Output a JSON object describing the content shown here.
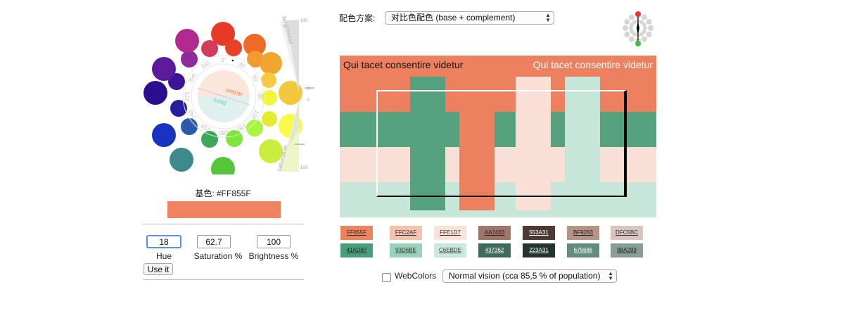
{
  "wheel": {
    "angle_labels": [
      "0°",
      "30",
      "60",
      "90",
      "120",
      "150",
      "180",
      "210",
      "240",
      "270",
      "300",
      "330"
    ],
    "warm_label": "warm",
    "cold_label": "cold",
    "brightness_label": "brightness",
    "saturation_label": "saturation",
    "brightness_ticks": [
      "100",
      "0"
    ],
    "saturation_ticks": [
      "0",
      "100"
    ],
    "circle_colors": [
      "#e63a26",
      "#d43a5a",
      "#e8412a",
      "#ee6a26",
      "#f09a30",
      "#f0a62e",
      "#f5c940",
      "#f4c83c",
      "#f3f53a",
      "#f8f948",
      "#e3ec30",
      "#c9ee3e",
      "#a8f53e",
      "#7de63a",
      "#55c63a",
      "#3ea85a",
      "#3c8a8c",
      "#2b5aa8",
      "#1a32c0",
      "#281e9c",
      "#2a0e90",
      "#3e1496",
      "#5a1a9a",
      "#8c2a9e",
      "#b02a90"
    ]
  },
  "base": {
    "label": "基色: #FF855F",
    "color": "#ef8260"
  },
  "inputs": {
    "hue": "18",
    "saturation": "62.7",
    "brightness": "100",
    "hue_label": "Hue",
    "saturation_label": "Saturation %",
    "brightness_label": "Brightness %",
    "use_button": "Use it"
  },
  "scheme": {
    "label": "配色方案:",
    "selected": "对比色配色 (base + complement)"
  },
  "preview": {
    "text_left": "Qui tacet consentire videtur",
    "text_right": "Qui tacet consentire videtur",
    "colors": {
      "orange": "#ed815f",
      "green": "#56a17e",
      "peach": "#f9e0d6",
      "mint": "#c6e6da"
    }
  },
  "palette": {
    "row1": [
      {
        "label": "FF855F",
        "color": "#ed825f",
        "text": "#333333"
      },
      {
        "label": "FFC2AF",
        "color": "#f5c2b0",
        "text": "#333333"
      },
      {
        "label": "FFE1D7",
        "color": "#fbe1d8",
        "text": "#333333"
      },
      {
        "label": "AA7463",
        "color": "#a07567",
        "text": "#222222"
      },
      {
        "label": "553A31",
        "color": "#4d3b33",
        "text": "#ffffff"
      },
      {
        "label": "BF9283",
        "color": "#b59385",
        "text": "#222222"
      },
      {
        "label": "DFC5BC",
        "color": "#d9c5bd",
        "text": "#333333"
      }
    ],
    "row2": [
      {
        "label": "41AD87",
        "color": "#4b9e7c",
        "text": "#222222"
      },
      {
        "label": "93D6BE",
        "color": "#9ad3bd",
        "text": "#333333"
      },
      {
        "label": "C6EBDE",
        "color": "#c9e9dd",
        "text": "#333333"
      },
      {
        "label": "437362",
        "color": "#3f6b5c",
        "text": "#ffffff"
      },
      {
        "label": "223A31",
        "color": "#23352e",
        "text": "#ffffff"
      },
      {
        "label": "679686",
        "color": "#648c7e",
        "text": "#ffffff"
      },
      {
        "label": "88A299",
        "color": "#879d95",
        "text": "#222222"
      }
    ]
  },
  "footer": {
    "webcolors_label": "WebColors",
    "vision_selected": "Normal vision (cca 85,5 % of population)"
  }
}
